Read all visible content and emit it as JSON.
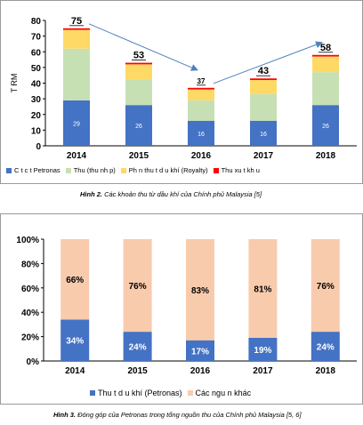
{
  "chart_data": [
    {
      "type": "bar",
      "stacked": true,
      "ylabel": "T RM",
      "categories": [
        "2014",
        "2015",
        "2016",
        "2017",
        "2018"
      ],
      "ylim": [
        0,
        80
      ],
      "yticks": [
        "0",
        "10",
        "20",
        "30",
        "40",
        "50",
        "60",
        "70",
        "80"
      ],
      "series": [
        {
          "name": "C t c t Petronas",
          "color": "#4472c4",
          "values": [
            29,
            26,
            16,
            16,
            26
          ]
        },
        {
          "name": "Thu (thu nh p)",
          "color": "#c6e0b4",
          "values": [
            33,
            16,
            13,
            17,
            21
          ]
        },
        {
          "name": "Ph n thu t d u khí (Royalty)",
          "color": "#ffd966",
          "values": [
            12,
            10,
            7,
            9,
            10
          ]
        },
        {
          "name": "Thu xu t kh u",
          "color": "#ff0000",
          "values": [
            1,
            1,
            1,
            1,
            1
          ]
        }
      ],
      "segment_labels": [
        "29",
        "26",
        "16",
        "16",
        "26"
      ],
      "totals": [
        "75",
        "53",
        "37",
        "43",
        "58"
      ],
      "grid": false,
      "legend": "bottom",
      "arrows": [
        {
          "from": "2014",
          "to": "2016"
        },
        {
          "from": "2016",
          "to": "2018"
        }
      ]
    },
    {
      "type": "bar",
      "stacked": true,
      "percent": true,
      "categories": [
        "2014",
        "2015",
        "2016",
        "2017",
        "2018"
      ],
      "ylim": [
        0,
        100
      ],
      "yticks": [
        "0%",
        "20%",
        "40%",
        "60%",
        "80%",
        "100%"
      ],
      "series": [
        {
          "name": "Thu t d u khí (Petronas)",
          "color": "#4472c4",
          "values": [
            34,
            24,
            17,
            19,
            24
          ],
          "labels": [
            "34%",
            "24%",
            "17%",
            "19%",
            "24%"
          ]
        },
        {
          "name": "Các ngu n khác",
          "color": "#f8cbad",
          "values": [
            66,
            76,
            83,
            81,
            76
          ],
          "labels": [
            "66%",
            "76%",
            "83%",
            "81%",
            "76%"
          ]
        }
      ],
      "grid": false,
      "legend": "bottom"
    }
  ],
  "captions": {
    "fig2_label": "Hình 2.",
    "fig2_text": " Các khoản thu từ dầu khí của Chính phủ Malaysia [5]",
    "fig3_label": "Hình 3.",
    "fig3_text": " Đóng góp của Petronas trong tổng nguồn thu của Chính phủ Malaysia [5, 6]"
  }
}
